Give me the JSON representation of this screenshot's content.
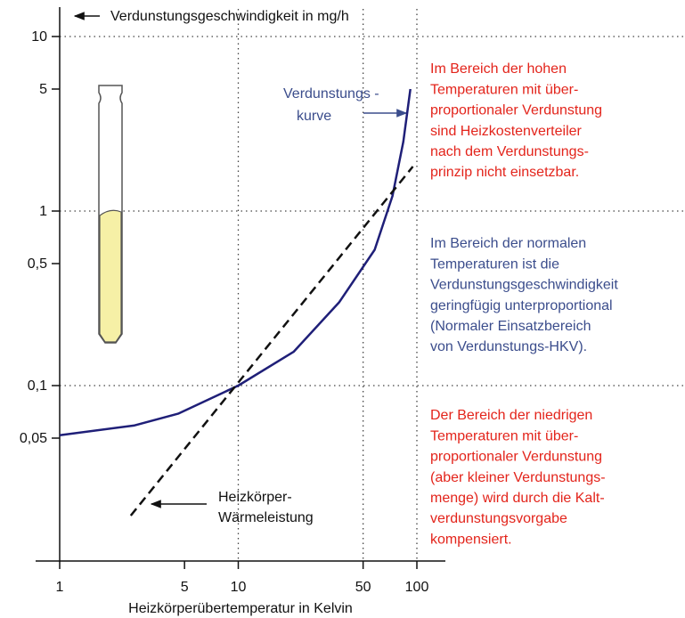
{
  "chart_data": {
    "type": "line",
    "y_axis_title": "Verdunstungsgeschwindigkeit in mg/h",
    "x_axis_title": "Heizkörperübertemperatur in Kelvin",
    "log_x": true,
    "log_y": true,
    "xlim": [
      1,
      100
    ],
    "ylim": [
      0.01,
      10
    ],
    "xticks": [
      1,
      5,
      10,
      50,
      100
    ],
    "yticks": [
      {
        "value": 0.05,
        "label": "0,05"
      },
      {
        "value": 0.1,
        "label": "0,1"
      },
      {
        "value": 0.5,
        "label": "0,5"
      },
      1,
      5,
      10
    ],
    "xgrid": [
      10,
      50,
      100
    ],
    "ygrid": [
      0.1,
      1,
      10
    ],
    "series": [
      {
        "name": [
          "Verdunstungs -",
          "kurve"
        ],
        "color": "#1f1f78",
        "dashed": false,
        "x": [
          1,
          2.6,
          4.6,
          10,
          20.4,
          36.7,
          58,
          73,
          84,
          92
        ],
        "values": [
          0.052,
          0.059,
          0.069,
          0.1,
          0.156,
          0.3,
          0.6,
          1.22,
          2.5,
          5
        ]
      },
      {
        "name": [
          "Heizkörper-",
          "Wärmeleistung"
        ],
        "color": "#111111",
        "dashed": true,
        "x": [
          2.5,
          95
        ],
        "values": [
          0.018,
          1.8
        ]
      }
    ],
    "annotations": [
      {
        "color": "#e3241b",
        "lines": [
          "Im Bereich der hohen",
          "Temperaturen mit über-",
          "proportionaler Verdunstung",
          "sind Heizkostenverteiler",
          "nach dem Verdunstungs-",
          "prinzip nicht einsetzbar."
        ]
      },
      {
        "color": "#3b4d8c",
        "lines": [
          "Im Bereich der normalen",
          "Temperaturen ist die",
          "Verdunstungsgeschwindigkeit",
          "geringfügig unterproportional",
          "(Normaler Einsatzbereich",
          "von Verdunstungs-HKV)."
        ]
      },
      {
        "color": "#e3241b",
        "lines": [
          "Der Bereich der niedrigen",
          "Temperaturen mit über-",
          "proportionaler Verdunstung",
          "(aber kleiner Verdunstungs-",
          "menge) wird durch die Kalt-",
          "verdunstungsvorgabe",
          "kompensiert."
        ]
      }
    ]
  }
}
